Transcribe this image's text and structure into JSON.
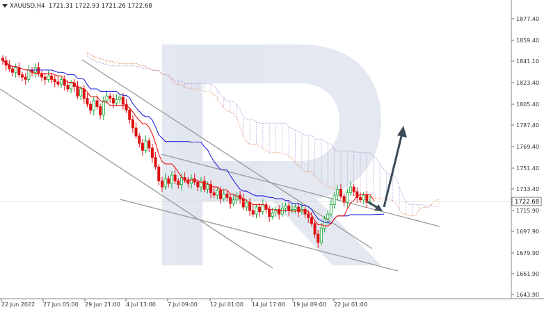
{
  "header": {
    "symbol": "XAUUSD,H4",
    "ohlc": "1721.31 1722.93 1721.26 1722.68"
  },
  "chart_data": {
    "type": "candlestick",
    "title": "XAUUSD,H4 1721.31 1722.93 1721.26 1722.68",
    "price_axis_ticks": [
      "1877.40",
      "1859.40",
      "1841.10",
      "1823.40",
      "1805.40",
      "1787.40",
      "1769.40",
      "1751.40",
      "1733.40",
      "1715.90",
      "1697.90",
      "1679.90",
      "1661.90",
      "1643.90"
    ],
    "time_axis_ticks": [
      "22 Jun 2022",
      "27 Jun 05:00",
      "29 Jun 21:00",
      "4 Jul 13:00",
      "7 Jul 09:00",
      "12 Jul 01:00",
      "14 Jul 17:00",
      "19 Jul 09:00",
      "22 Jul 01:00"
    ],
    "current_price": "1722.68",
    "ylim": [
      1640,
      1885
    ],
    "closes": [
      1842,
      1838,
      1835,
      1832,
      1836,
      1830,
      1828,
      1826,
      1834,
      1832,
      1836,
      1831,
      1828,
      1826,
      1829,
      1826,
      1824,
      1822,
      1826,
      1821,
      1818,
      1823,
      1820,
      1812,
      1818,
      1810,
      1805,
      1800,
      1808,
      1803,
      1796,
      1808,
      1812,
      1810,
      1806,
      1809,
      1811,
      1805,
      1800,
      1792,
      1785,
      1778,
      1772,
      1766,
      1774,
      1768,
      1760,
      1752,
      1740,
      1735,
      1742,
      1738,
      1745,
      1740,
      1737,
      1743,
      1741,
      1738,
      1742,
      1739,
      1735,
      1740,
      1733,
      1737,
      1730,
      1728,
      1732,
      1725,
      1729,
      1726,
      1721,
      1724,
      1728,
      1725,
      1718,
      1722,
      1715,
      1712,
      1718,
      1714,
      1720,
      1716,
      1710,
      1713,
      1716,
      1712,
      1717,
      1719,
      1715,
      1716,
      1718,
      1714,
      1716,
      1712,
      1709,
      1704,
      1695,
      1688,
      1700,
      1708,
      1712,
      1720,
      1728,
      1733,
      1727,
      1722,
      1730,
      1735,
      1731,
      1726,
      1724,
      1728,
      1722,
      1723
    ],
    "tenkan_sen_last": 1723,
    "kijun_sen_last": 1712,
    "forecast_arrow": {
      "from": 1717,
      "to": 1789
    }
  }
}
